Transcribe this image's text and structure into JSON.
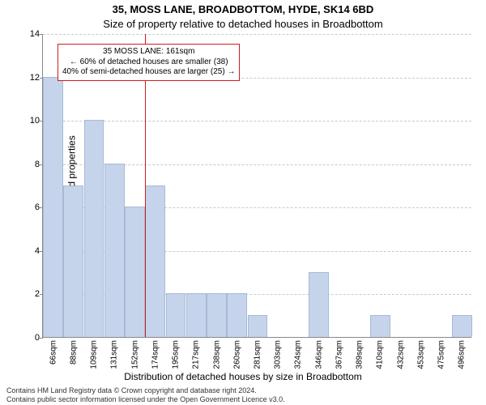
{
  "titles": {
    "main": "35, MOSS LANE, BROADBOTTOM, HYDE, SK14 6BD",
    "sub": "Size of property relative to detached houses in Broadbottom"
  },
  "axes": {
    "ylabel": "Number of detached properties",
    "xlabel": "Distribution of detached houses by size in Broadbottom",
    "ylim": [
      0,
      14
    ],
    "ytick_step": 2,
    "grid_color": "#c9c9c9",
    "axis_color": "#888888",
    "bar_color": "#c5d4ea",
    "bar_border": "#a7b9d6"
  },
  "marker": {
    "line_color": "#d01c1f"
  },
  "annotation": {
    "border_color": "#d01c1f",
    "line1": "35 MOSS LANE: 161sqm",
    "line2": "← 60% of detached houses are smaller (38)",
    "line3": "40% of semi-detached houses are larger (25) →"
  },
  "bars": {
    "categories": [
      "66sqm",
      "88sqm",
      "109sqm",
      "131sqm",
      "152sqm",
      "174sqm",
      "195sqm",
      "217sqm",
      "238sqm",
      "260sqm",
      "281sqm",
      "303sqm",
      "324sqm",
      "346sqm",
      "367sqm",
      "389sqm",
      "410sqm",
      "432sqm",
      "453sqm",
      "475sqm",
      "496sqm"
    ],
    "values": [
      12,
      7,
      10,
      8,
      6,
      7,
      2,
      2,
      2,
      2,
      1,
      0,
      0,
      3,
      0,
      0,
      1,
      0,
      0,
      0,
      1
    ]
  },
  "marker_after_index": 4,
  "footer": {
    "line1": "Contains HM Land Registry data © Crown copyright and database right 2024.",
    "line2": "Contains public sector information licensed under the Open Government Licence v3.0."
  }
}
